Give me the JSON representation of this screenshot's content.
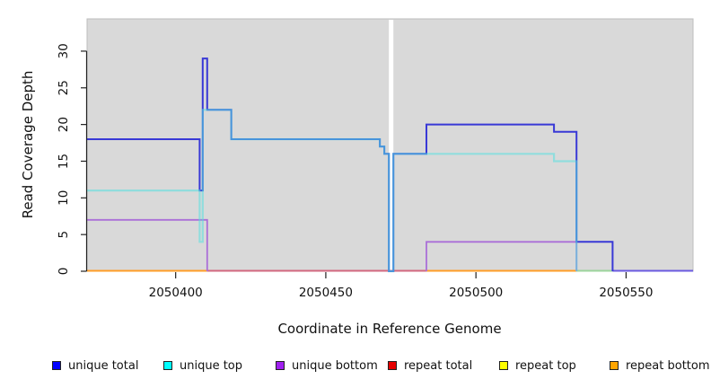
{
  "figure_title": "",
  "legend": {
    "items": [
      {
        "label": "unique total",
        "color": "#0000ff"
      },
      {
        "label": "unique top",
        "color": "#00ffff"
      },
      {
        "label": "unique bottom",
        "color": "#a020f0"
      },
      {
        "label": "repeat total",
        "color": "#e60000"
      },
      {
        "label": "repeat top",
        "color": "#ffff00"
      },
      {
        "label": "repeat bottom",
        "color": "#ffa500"
      }
    ]
  },
  "chart_data": {
    "type": "line",
    "subtype": "step",
    "title": "",
    "xlabel": "Coordinate in Reference Genome",
    "ylabel": "Read Coverage Depth",
    "xlim": [
      2050370.5,
      2050572.3
    ],
    "ylim": [
      0,
      34.4
    ],
    "x_ticks": [
      2050400,
      2050450,
      2050500,
      2050550
    ],
    "y_ticks": [
      0,
      5,
      10,
      15,
      20,
      25,
      30
    ],
    "grid": false,
    "legend_position": "bottom",
    "panel_bg": "#d9d9d9",
    "gap_region": {
      "x": [
        2050471,
        2050472.5
      ],
      "color": "#ffffff"
    },
    "series": [
      {
        "name": "unique total",
        "legend_color": "#0000ff",
        "line_color": "#3939d6",
        "steps": [
          [
            2050370.5,
            18
          ],
          [
            2050408,
            11
          ],
          [
            2050409,
            29
          ],
          [
            2050410.5,
            22
          ],
          [
            2050418.5,
            18
          ],
          [
            2050468,
            17
          ],
          [
            2050469.5,
            16
          ],
          [
            2050471,
            0
          ],
          [
            2050472.5,
            16
          ],
          [
            2050483.5,
            20
          ],
          [
            2050526,
            19
          ],
          [
            2050533.5,
            4
          ],
          [
            2050545.5,
            0
          ]
        ]
      },
      {
        "name": "unique top",
        "legend_color": "#00ffff",
        "line_color": "#55e0e0",
        "steps": [
          [
            2050370.5,
            11
          ],
          [
            2050408,
            4
          ],
          [
            2050409,
            22
          ],
          [
            2050418.5,
            18
          ],
          [
            2050468,
            17
          ],
          [
            2050469.5,
            16
          ],
          [
            2050471,
            0
          ],
          [
            2050472.5,
            16
          ],
          [
            2050526,
            15
          ],
          [
            2050533.5,
            0
          ]
        ]
      },
      {
        "name": "unique bottom",
        "legend_color": "#a020f0",
        "line_color": "#aa6fd8",
        "steps": [
          [
            2050370.5,
            7
          ],
          [
            2050410.5,
            0
          ],
          [
            2050483.5,
            4
          ],
          [
            2050533.5,
            0
          ]
        ]
      },
      {
        "name": "repeat total",
        "legend_color": "#e60000",
        "line_color": "#d2687f",
        "steps": [
          [
            2050370.5,
            0
          ]
        ]
      },
      {
        "name": "repeat top",
        "legend_color": "#ffff00",
        "line_color": "#e8e860",
        "steps": [
          [
            2050370.5,
            0
          ]
        ]
      },
      {
        "name": "repeat bottom",
        "legend_color": "#ffa500",
        "line_color": "#ff9d26",
        "steps": [
          [
            2050370.5,
            0
          ]
        ]
      }
    ],
    "baseline_segments": [
      {
        "x": [
          2050370.5,
          2050410.5
        ],
        "color": "#ff9d26"
      },
      {
        "x": [
          2050410.5,
          2050483.5
        ],
        "color": "#d2687f"
      },
      {
        "x": [
          2050483.5,
          2050533.5
        ],
        "color": "#ff9d26"
      },
      {
        "x": [
          2050533.5,
          2050545.5
        ],
        "color": "#9cd49c"
      },
      {
        "x": [
          2050545.5,
          2050572.3
        ],
        "color": "#6a5ae0"
      }
    ]
  }
}
